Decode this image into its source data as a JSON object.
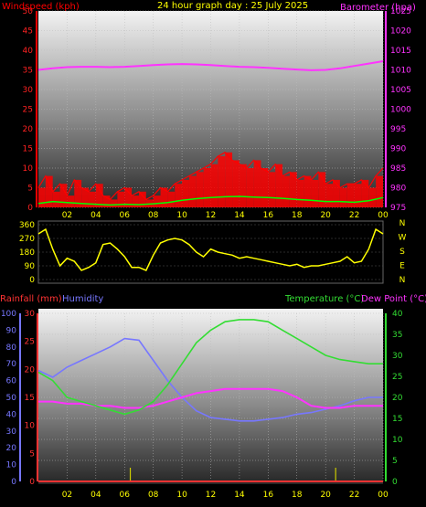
{
  "header": {
    "title": "24 hour graph day : 25 July 2025",
    "wind_label": "Windspeed (kph)",
    "baro_label": "Barometer (hpa)"
  },
  "colors": {
    "wind": "#ff0000",
    "gust": "#ff0000",
    "wind_avg": "#00ff00",
    "wind_bars": "#ffffff",
    "baro": "#ff33ff",
    "dir": "#ffff00",
    "temp": "#33dd33",
    "dew": "#ff33ff",
    "hum": "#7777ff",
    "rain": "#ff3333",
    "rainmarks": "#cccc00"
  },
  "chart_data": [
    {
      "type": "line",
      "name": "wind-barometer",
      "title": "24 hour graph day : 25 July 2025",
      "ylabel": "Windspeed (kph)",
      "ylabel_right": "Barometer (hpa)",
      "xticks": [
        "02",
        "04",
        "06",
        "08",
        "10",
        "12",
        "14",
        "16",
        "18",
        "20",
        "22",
        "00"
      ],
      "ylim": [
        0,
        50
      ],
      "yticks": [
        0,
        5,
        10,
        15,
        20,
        25,
        30,
        35,
        40,
        45,
        50
      ],
      "ylim_right": [
        975,
        1025
      ],
      "yticks_right": [
        975,
        980,
        985,
        990,
        995,
        1000,
        1005,
        1010,
        1015,
        1020,
        1025
      ],
      "series": [
        {
          "x": [
            0,
            1,
            2,
            3,
            4,
            5,
            6,
            7,
            8,
            9,
            10,
            11,
            12,
            13,
            14,
            15,
            16,
            17,
            18,
            19,
            20,
            21,
            22,
            23,
            24
          ],
          "values": [
            1010,
            1010.4,
            1010.7,
            1010.8,
            1010.8,
            1010.7,
            1010.8,
            1011,
            1011.2,
            1011.4,
            1011.5,
            1011.4,
            1011.2,
            1011,
            1010.8,
            1010.7,
            1010.5,
            1010.3,
            1010.1,
            1009.9,
            1010,
            1010.4,
            1011,
            1011.6,
            1012.2
          ]
        },
        {
          "x": [
            0,
            0.5,
            1,
            1.5,
            2,
            2.5,
            3,
            3.5,
            4,
            4.5,
            5,
            5.5,
            6,
            6.5,
            7,
            7.5,
            8,
            8.5,
            9,
            9.5,
            10,
            10.5,
            11,
            11.5,
            12,
            12.5,
            13,
            13.5,
            14,
            14.5,
            15,
            15.5,
            16,
            16.5,
            17,
            17.5,
            18,
            18.5,
            19,
            19.5,
            20,
            20.5,
            21,
            21.5,
            22,
            22.5,
            23,
            23.5,
            24
          ],
          "values": [
            5,
            8,
            4,
            6,
            3,
            7,
            5,
            4,
            6,
            3,
            2,
            4,
            5,
            3,
            4,
            2,
            3,
            5,
            4,
            6,
            7,
            8,
            9,
            10,
            11,
            13,
            14,
            12,
            11,
            10,
            12,
            10,
            9,
            11,
            8,
            9,
            7,
            8,
            7,
            9,
            6,
            7,
            5,
            6,
            6,
            7,
            5,
            8,
            10
          ]
        },
        {
          "x": [
            0,
            1,
            2,
            3,
            4,
            5,
            6,
            7,
            8,
            9,
            10,
            11,
            12,
            13,
            14,
            15,
            16,
            17,
            18,
            19,
            20,
            21,
            22,
            23,
            24
          ],
          "values": [
            1,
            1.5,
            1.2,
            1,
            0.8,
            0.6,
            0.8,
            0.7,
            0.9,
            1.2,
            1.8,
            2.2,
            2.5,
            2.7,
            2.8,
            2.6,
            2.5,
            2.3,
            2,
            1.8,
            1.5,
            1.5,
            1.3,
            1.7,
            2.5
          ]
        }
      ]
    },
    {
      "type": "line",
      "name": "wind-direction",
      "yticks": [
        0,
        90,
        180,
        270,
        360
      ],
      "ylim": [
        0,
        360
      ],
      "dir_labels": [
        "N",
        "W",
        "S",
        "E",
        "N"
      ],
      "series": [
        {
          "x": [
            0,
            0.5,
            1,
            1.5,
            2,
            2.5,
            3,
            3.5,
            4,
            4.5,
            5,
            5.5,
            6,
            6.5,
            7,
            7.5,
            8,
            8.5,
            9,
            9.5,
            10,
            10.5,
            11,
            11.5,
            12,
            12.5,
            13,
            13.5,
            14,
            14.5,
            15,
            15.5,
            16,
            16.5,
            17,
            17.5,
            18,
            18.5,
            19,
            19.5,
            20,
            20.5,
            21,
            21.5,
            22,
            22.5,
            23,
            23.5,
            24
          ],
          "values": [
            300,
            330,
            200,
            90,
            140,
            120,
            60,
            80,
            110,
            230,
            240,
            200,
            150,
            80,
            80,
            60,
            160,
            240,
            260,
            270,
            260,
            230,
            180,
            150,
            200,
            180,
            170,
            160,
            140,
            150,
            140,
            130,
            120,
            110,
            100,
            90,
            100,
            80,
            90,
            90,
            100,
            110,
            120,
            150,
            110,
            120,
            200,
            330,
            300
          ]
        }
      ]
    },
    {
      "type": "line",
      "name": "temp-humidity-rain",
      "rain_label": "Rainfall (mm)",
      "hum_label": "Humidity",
      "temp_label": "Temperature (°C)",
      "dew_label": "Dew Point (°C)",
      "xticks": [
        "02",
        "04",
        "06",
        "08",
        "10",
        "12",
        "14",
        "16",
        "18",
        "20",
        "22",
        "00"
      ],
      "ylim_rain": [
        0,
        30
      ],
      "yticks_rain": [
        0,
        5,
        10,
        15,
        20,
        25,
        30
      ],
      "ylim_hum": [
        0,
        100
      ],
      "yticks_hum": [
        0,
        10,
        20,
        30,
        40,
        50,
        60,
        70,
        80,
        90,
        100
      ],
      "ylim_temp": [
        0,
        40
      ],
      "yticks_temp": [
        0,
        5,
        10,
        15,
        20,
        25,
        30,
        35,
        40
      ],
      "series": [
        {
          "x": [
            0,
            1,
            2,
            3,
            4,
            5,
            6,
            7,
            8,
            9,
            10,
            11,
            12,
            13,
            14,
            15,
            16,
            17,
            18,
            19,
            20,
            21,
            22,
            23,
            24
          ],
          "values": [
            26,
            24,
            20,
            19,
            18,
            17,
            16,
            17,
            19,
            23,
            28,
            33,
            36,
            38,
            38.5,
            38.5,
            38,
            36,
            34,
            32,
            30,
            29,
            28.5,
            28,
            28
          ]
        },
        {
          "x": [
            0,
            1,
            2,
            3,
            4,
            5,
            6,
            7,
            8,
            9,
            10,
            11,
            12,
            13,
            14,
            15,
            16,
            17,
            18,
            19,
            20,
            21,
            22,
            23,
            24
          ],
          "values": [
            19,
            19,
            18.5,
            18.5,
            18,
            18,
            17.5,
            17.5,
            18,
            19,
            20,
            21,
            21.5,
            22,
            22,
            22,
            22,
            21.5,
            20,
            18,
            17.5,
            17.5,
            18,
            18,
            18
          ]
        },
        {
          "x": [
            0,
            1,
            2,
            3,
            4,
            5,
            6,
            7,
            8,
            9,
            10,
            11,
            12,
            13,
            14,
            15,
            16,
            17,
            18,
            19,
            20,
            21,
            22,
            23,
            24
          ],
          "values": [
            66,
            62,
            68,
            72,
            76,
            80,
            85,
            84,
            72,
            60,
            50,
            42,
            38,
            37,
            36,
            36,
            37,
            38,
            40,
            41,
            43,
            45,
            48,
            50,
            50
          ]
        },
        {
          "x": [
            0,
            6.3,
            6.4,
            20.6,
            20.7,
            24
          ],
          "values": [
            0,
            0,
            0,
            0,
            0,
            0
          ]
        }
      ]
    }
  ]
}
